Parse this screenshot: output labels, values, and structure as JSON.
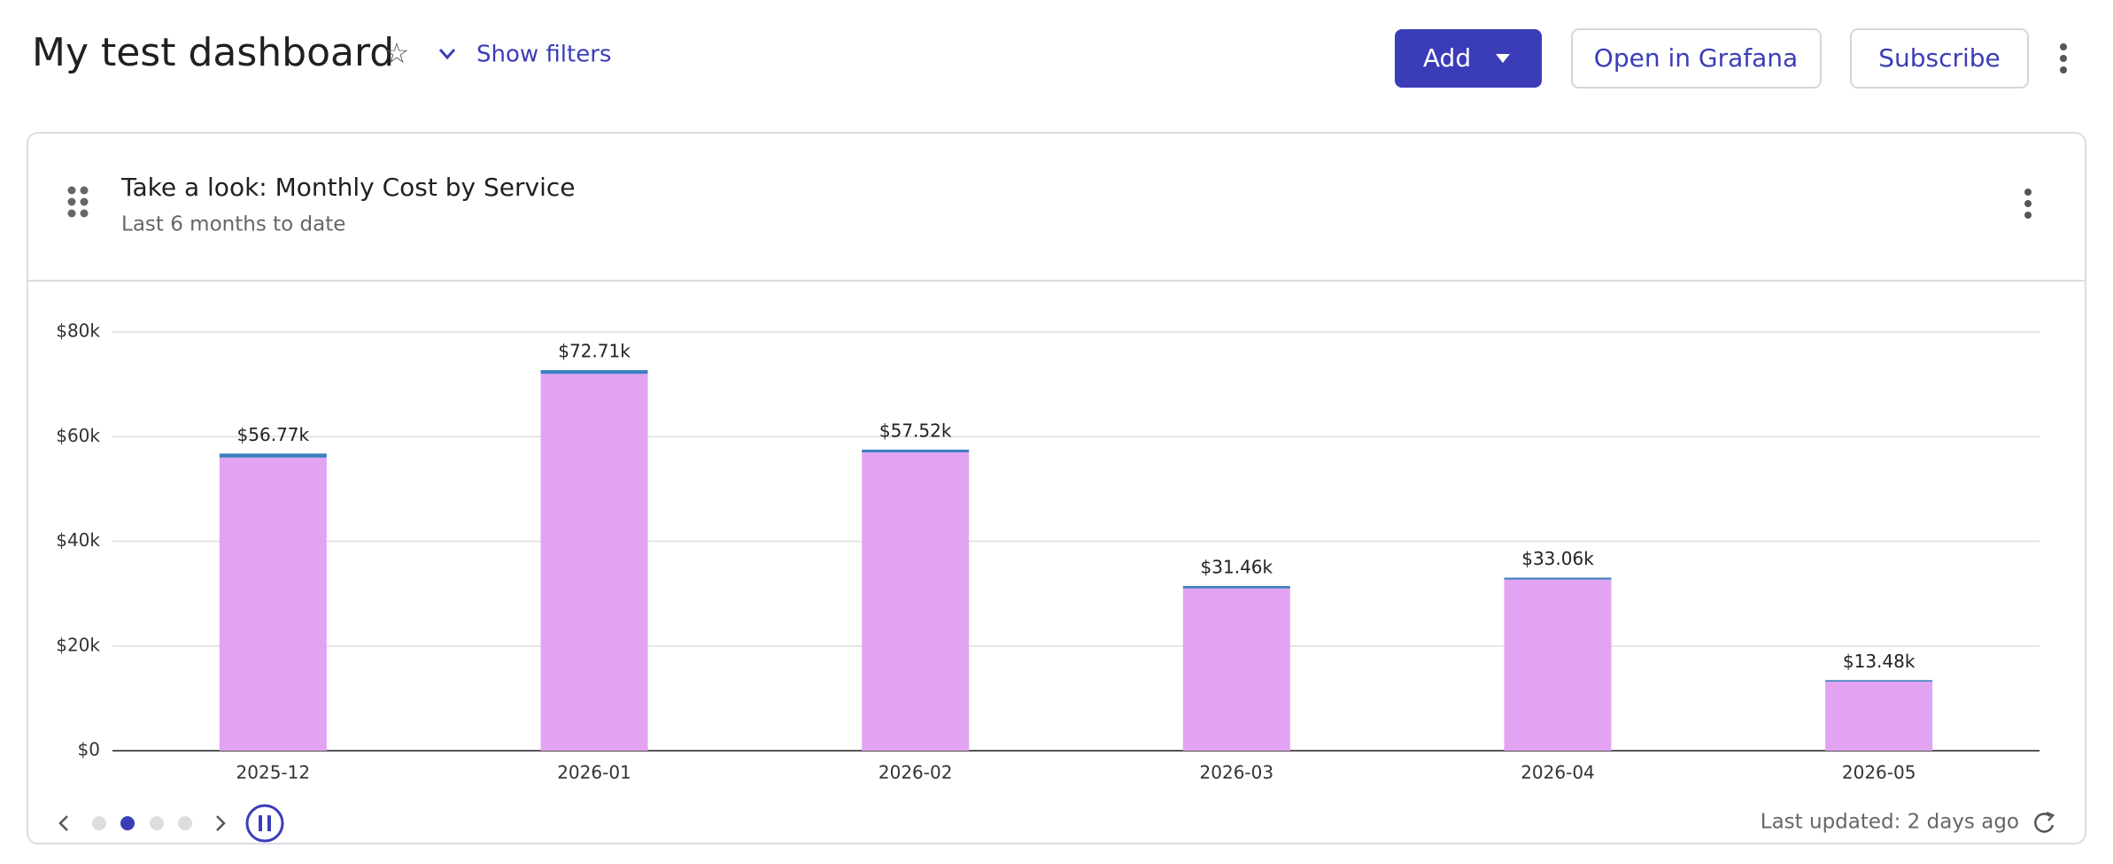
{
  "page": {
    "dashboard_title": "My test dashboard",
    "show_filters": "Show filters",
    "buttons": [
      "Add",
      "Open in Grafana",
      "Subscribe"
    ],
    "panel_title": "Take a look: Monthly Cost by Service",
    "panel_subtitle": "Last 6 months to date",
    "last_updated": "Last updated: 2 days ago"
  },
  "chart_data": {
    "type": "stacked_bar",
    "categories": [
      "2025-12",
      "2026-01",
      "2026-02",
      "2026-03",
      "2026-04",
      "2026-05"
    ],
    "series": [
      {
        "color": "#e3a3f3",
        "values": [
          56000,
          72000,
          57000,
          31000,
          32700,
          13200
        ]
      },
      {
        "color": "#3d7fbf",
        "values": [
          770,
          710,
          520,
          460,
          360,
          280
        ]
      }
    ],
    "total_labels": [
      "$56.77k",
      "$72.71k",
      "$57.52k",
      "$31.46k",
      "$33.06k",
      "$13.48k"
    ],
    "ylim": [
      0,
      80000
    ],
    "yticks": [
      {
        "value": 0,
        "label": "$0"
      },
      {
        "value": 20000,
        "label": "$20k"
      },
      {
        "value": 40000,
        "label": "$40k"
      },
      {
        "value": 60000,
        "label": "$60k"
      },
      {
        "value": 80000,
        "label": "$80k"
      }
    ],
    "grid": true
  }
}
